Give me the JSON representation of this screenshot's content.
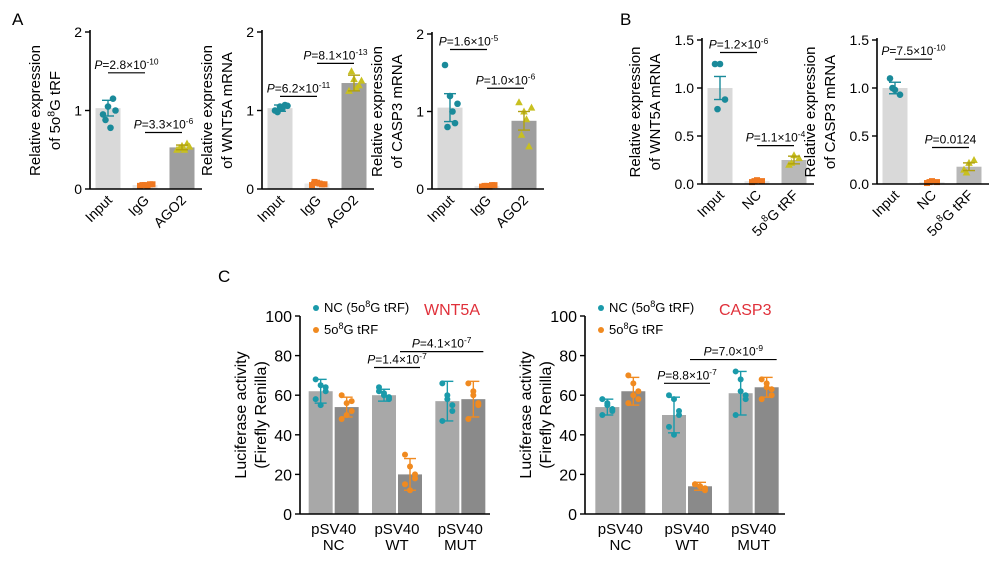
{
  "panel_letters": [
    "A",
    "B",
    "C"
  ],
  "colors": {
    "input_bar": "#d9d9d9",
    "igg_bar": "#e8e8e8",
    "ago2_bar": "#9e9e9e",
    "nc_bar": "#e8e8e8",
    "trf_bar": "#b8b8b8",
    "luc_nc_bar": "#a8a8a8",
    "luc_trf_bar": "#8a8a8a",
    "input_dots": "#1a8a9a",
    "control_dots": "#f07820",
    "treat_dots": "#c8c020",
    "luc_nc_dots": "#1a9aaa",
    "luc_trf_dots": "#f08a20",
    "gene_label": "#e0303a"
  },
  "chart_data": [
    {
      "panel": "A",
      "type": "bar",
      "title": "",
      "xlabel": "",
      "ylabel_line1": "Relative expression",
      "ylabel_line2": "of 5o8G tRF",
      "ylim": [
        0,
        2
      ],
      "yticks": [
        "0",
        "1",
        "2"
      ],
      "ytick_values": [
        0,
        1,
        2
      ],
      "categories": [
        "Input",
        "IgG",
        "AGO2"
      ],
      "values": [
        1.03,
        0.05,
        0.53
      ],
      "errors": [
        0.1,
        0.02,
        0.03
      ],
      "points": [
        [
          0.95,
          1.05,
          1.15,
          0.88,
          0.78,
          1.0
        ],
        [
          0.04,
          0.05,
          0.06,
          0.05,
          0.04,
          0.06
        ],
        [
          0.5,
          0.55,
          0.58,
          0.52,
          0.5,
          0.54
        ]
      ],
      "annotations": [
        {
          "text": "P=2.8×10-10",
          "from": 0,
          "to": 1,
          "y": 1.48
        },
        {
          "text": "P=3.3×10-6",
          "from": 1,
          "to": 2,
          "y": 0.72
        }
      ]
    },
    {
      "panel": "A",
      "type": "bar",
      "title": "",
      "xlabel": "",
      "ylabel_line1": "Relative expression",
      "ylabel_line2": "of WNT5A mRNA",
      "ylim": [
        0,
        2
      ],
      "yticks": [
        "0",
        "1",
        "2"
      ],
      "ytick_values": [
        0,
        1,
        2
      ],
      "categories": [
        "Input",
        "IgG",
        "AGO2"
      ],
      "values": [
        1.03,
        0.07,
        1.35
      ],
      "errors": [
        0.04,
        0.02,
        0.1
      ],
      "points": [
        [
          1.0,
          1.05,
          1.07,
          0.98,
          1.03,
          1.06
        ],
        [
          0.05,
          0.08,
          0.06,
          0.09,
          0.07,
          0.06
        ],
        [
          1.25,
          1.4,
          1.32,
          1.5,
          1.28,
          1.38
        ]
      ],
      "annotations": [
        {
          "text": "P=6.2×10-11",
          "from": 0,
          "to": 1,
          "y": 1.18
        },
        {
          "text": "P=8.1×10-13",
          "from": 1,
          "to": 2,
          "y": 1.6
        }
      ]
    },
    {
      "panel": "A",
      "type": "bar",
      "title": "",
      "xlabel": "",
      "ylabel_line1": "Relative expression",
      "ylabel_line2": "of CASP3 mRNA",
      "ylim": [
        0,
        2
      ],
      "yticks": [
        "0",
        "1",
        "2"
      ],
      "ytick_values": [
        0,
        1,
        2
      ],
      "categories": [
        "Input",
        "IgG",
        "AGO2"
      ],
      "values": [
        1.05,
        0.04,
        0.88
      ],
      "errors": [
        0.18,
        0.01,
        0.12
      ],
      "points": [
        [
          1.6,
          1.2,
          0.85,
          0.8,
          1.0,
          1.1
        ],
        [
          0.03,
          0.04,
          0.05,
          0.04,
          0.03,
          0.05
        ],
        [
          1.12,
          1.0,
          0.55,
          0.7,
          0.9,
          1.05
        ]
      ],
      "annotations": [
        {
          "text": "P=1.6×10-5",
          "from": 0,
          "to": 1,
          "y": 1.8
        },
        {
          "text": "P=1.0×10-6",
          "from": 1,
          "to": 2,
          "y": 1.3
        }
      ]
    },
    {
      "panel": "B",
      "type": "bar",
      "title": "",
      "xlabel": "",
      "ylabel_line1": "Relative expression",
      "ylabel_line2": "of WNT5A mRNA",
      "ylim": [
        0,
        1.5
      ],
      "yticks": [
        "0.0",
        "0.5",
        "1.0",
        "1.5"
      ],
      "ytick_values": [
        0,
        0.5,
        1,
        1.5
      ],
      "categories": [
        "Input",
        "NC",
        "5o8G tRF"
      ],
      "values": [
        1.0,
        0.03,
        0.25
      ],
      "errors": [
        0.12,
        0.01,
        0.04
      ],
      "points": [
        [
          1.25,
          1.25,
          0.88,
          0.78
        ],
        [
          0.02,
          0.04,
          0.03,
          0.03
        ],
        [
          0.2,
          0.3,
          0.27,
          0.22
        ]
      ],
      "annotations": [
        {
          "text": "P=1.2×10-6",
          "from": 0,
          "to": 1,
          "y": 1.37
        },
        {
          "text": "P=1.1×10-4",
          "from": 1,
          "to": 2,
          "y": 0.4
        }
      ]
    },
    {
      "panel": "B",
      "type": "bar",
      "title": "",
      "xlabel": "",
      "ylabel_line1": "Relative expression",
      "ylabel_line2": "of CASP3 mRNA",
      "ylim": [
        0,
        1.5
      ],
      "yticks": [
        "0.0",
        "0.5",
        "1.0",
        "1.5"
      ],
      "ytick_values": [
        0,
        0.5,
        1,
        1.5
      ],
      "categories": [
        "Input",
        "NC",
        "5o8G tRF"
      ],
      "values": [
        1.0,
        0.02,
        0.18
      ],
      "errors": [
        0.06,
        0.01,
        0.04
      ],
      "points": [
        [
          1.1,
          0.98,
          0.93,
          1.0
        ],
        [
          0.01,
          0.03,
          0.02,
          0.02
        ],
        [
          0.15,
          0.22,
          0.25,
          0.12
        ]
      ],
      "annotations": [
        {
          "text": "P=7.5×10-10",
          "from": 0,
          "to": 1,
          "y": 1.3
        },
        {
          "text": "P=0.0124",
          "from": 1,
          "to": 2,
          "y": 0.38
        }
      ]
    },
    {
      "panel": "C",
      "type": "bar",
      "title": "WNT5A",
      "xlabel": "",
      "ylabel_line1": "Luciferase activity",
      "ylabel_line2": "(Firefly Renilla)",
      "ylim": [
        0,
        100
      ],
      "yticks": [
        "0",
        "20",
        "40",
        "60",
        "80",
        "100"
      ],
      "ytick_values": [
        0,
        20,
        40,
        60,
        80,
        100
      ],
      "categories": [
        [
          "pSV40",
          "NC"
        ],
        [
          "pSV40",
          "WT"
        ],
        [
          "pSV40",
          "MUT"
        ]
      ],
      "legend": [
        "NC (5o8G tRF)",
        "5o8G tRF"
      ],
      "series": [
        {
          "name": "NC (5o8G tRF)",
          "values": [
            62,
            60,
            57
          ],
          "errors": [
            6,
            3,
            10
          ],
          "points": [
            [
              68,
              65,
              62,
              58,
              55,
              64
            ],
            [
              62,
              60,
              58,
              64,
              61,
              59
            ],
            [
              66,
              60,
              52,
              47,
              58,
              55
            ]
          ]
        },
        {
          "name": "5o8G tRF",
          "values": [
            54,
            20,
            58
          ],
          "errors": [
            5,
            8,
            9
          ],
          "points": [
            [
              60,
              56,
              52,
              48,
              50,
              57
            ],
            [
              30,
              24,
              20,
              15,
              12,
              18
            ],
            [
              66,
              62,
              55,
              48,
              60,
              56
            ]
          ]
        }
      ],
      "annotations": [
        {
          "text": "P=1.4×10-7",
          "from": [
            1,
            0
          ],
          "to": [
            1,
            1
          ],
          "y": 74
        },
        {
          "text": "P=4.1×10-7",
          "from": [
            1,
            1
          ],
          "to": [
            2,
            1
          ],
          "y": 82
        }
      ]
    },
    {
      "panel": "C",
      "type": "bar",
      "title": "CASP3",
      "xlabel": "",
      "ylabel_line1": "Luciferase activity",
      "ylabel_line2": "(Firefly Renilla)",
      "ylim": [
        0,
        100
      ],
      "yticks": [
        "0",
        "20",
        "40",
        "60",
        "80",
        "100"
      ],
      "ytick_values": [
        0,
        20,
        40,
        60,
        80,
        100
      ],
      "categories": [
        [
          "pSV40",
          "NC"
        ],
        [
          "pSV40",
          "WT"
        ],
        [
          "pSV40",
          "MUT"
        ]
      ],
      "legend": [
        "NC (5o8G tRF)",
        "5o8G tRF"
      ],
      "series": [
        {
          "name": "NC (5o8G tRF)",
          "values": [
            54,
            50,
            61
          ],
          "errors": [
            4,
            9,
            11
          ],
          "points": [
            [
              58,
              55,
              52,
              50,
              56,
              53
            ],
            [
              60,
              58,
              50,
              44,
              40,
              52
            ],
            [
              72,
              68,
              60,
              50,
              62,
              58
            ]
          ]
        },
        {
          "name": "5o8G tRF",
          "values": [
            62,
            14,
            64
          ],
          "errors": [
            7,
            2,
            5
          ],
          "points": [
            [
              70,
              66,
              62,
              56,
              60,
              58
            ],
            [
              15,
              14,
              13,
              15,
              14,
              12
            ],
            [
              68,
              66,
              63,
              58,
              64,
              60
            ]
          ]
        }
      ],
      "annotations": [
        {
          "text": "P=8.8×10-7",
          "from": [
            1,
            0
          ],
          "to": [
            1,
            1
          ],
          "y": 66
        },
        {
          "text": "P=7.0×10-9",
          "from": [
            1,
            1
          ],
          "to": [
            2,
            1
          ],
          "y": 78
        }
      ]
    }
  ]
}
